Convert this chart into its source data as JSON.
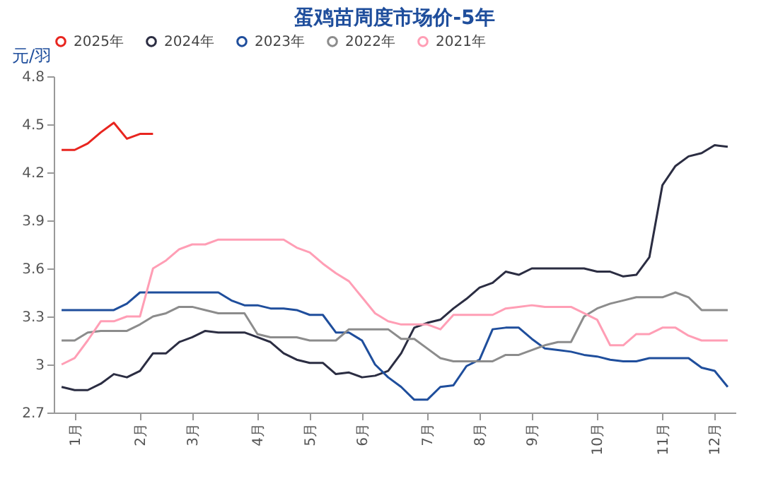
{
  "chart_data": {
    "type": "line",
    "title": "蛋鸡苗周度市场价-5年",
    "ylabel": "元/羽",
    "categories": [
      null,
      "1月",
      null,
      null,
      null,
      null,
      "2月",
      null,
      null,
      null,
      "3月",
      null,
      null,
      null,
      null,
      "4月",
      null,
      null,
      null,
      "5月",
      null,
      null,
      null,
      "6月",
      null,
      null,
      null,
      null,
      "7月",
      null,
      null,
      null,
      "8月",
      null,
      null,
      null,
      "9月",
      null,
      null,
      null,
      null,
      "10月",
      null,
      null,
      null,
      null,
      "11月",
      null,
      null,
      null,
      "12月",
      null
    ],
    "ylim": [
      2.7,
      4.8
    ],
    "yticks": [
      2.7,
      3,
      3.3,
      3.6,
      3.9,
      4.2,
      4.5,
      4.8
    ],
    "legend": "top",
    "series": [
      {
        "name": "2025年",
        "color": "#e8251f",
        "values": [
          4.34,
          4.34,
          4.38,
          4.45,
          4.51,
          4.41,
          4.44,
          4.44,
          null,
          null,
          null,
          null,
          null,
          null,
          null,
          null,
          null,
          null,
          null,
          null,
          null,
          null,
          null,
          null,
          null,
          null,
          null,
          null,
          null,
          null,
          null,
          null,
          null,
          null,
          null,
          null,
          null,
          null,
          null,
          null,
          null,
          null,
          null,
          null,
          null,
          null,
          null,
          null,
          null,
          null,
          null,
          null
        ]
      },
      {
        "name": "2024年",
        "color": "#2b2d42",
        "values": [
          2.86,
          2.84,
          2.84,
          2.88,
          2.94,
          2.92,
          2.96,
          3.07,
          3.07,
          3.14,
          3.17,
          3.21,
          3.2,
          3.2,
          3.2,
          3.17,
          3.14,
          3.07,
          3.03,
          3.01,
          3.01,
          2.94,
          2.95,
          2.92,
          2.93,
          2.96,
          3.07,
          3.23,
          3.26,
          3.28,
          3.35,
          3.41,
          3.48,
          3.51,
          3.58,
          3.56,
          3.6,
          3.6,
          3.6,
          3.6,
          3.6,
          3.58,
          3.58,
          3.55,
          3.56,
          3.67,
          4.12,
          4.24,
          4.3,
          4.32,
          4.37,
          4.36
        ]
      },
      {
        "name": "2023年",
        "color": "#1f4e9c",
        "values": [
          3.34,
          3.34,
          3.34,
          3.34,
          3.34,
          3.38,
          3.45,
          3.45,
          3.45,
          3.45,
          3.45,
          3.45,
          3.45,
          3.4,
          3.37,
          3.37,
          3.35,
          3.35,
          3.34,
          3.31,
          3.31,
          3.2,
          3.2,
          3.15,
          3.0,
          2.92,
          2.86,
          2.78,
          2.78,
          2.86,
          2.87,
          2.99,
          3.03,
          3.22,
          3.23,
          3.23,
          3.16,
          3.1,
          3.09,
          3.08,
          3.06,
          3.05,
          3.03,
          3.02,
          3.02,
          3.04,
          3.04,
          3.04,
          3.04,
          2.98,
          2.96,
          2.86
        ]
      },
      {
        "name": "2022年",
        "color": "#8c8c8c",
        "values": [
          3.15,
          3.15,
          3.2,
          3.21,
          3.21,
          3.21,
          3.25,
          3.3,
          3.32,
          3.36,
          3.36,
          3.34,
          3.32,
          3.32,
          3.32,
          3.19,
          3.17,
          3.17,
          3.17,
          3.15,
          3.15,
          3.15,
          3.22,
          3.22,
          3.22,
          3.22,
          3.16,
          3.16,
          3.1,
          3.04,
          3.02,
          3.02,
          3.02,
          3.02,
          3.06,
          3.06,
          3.09,
          3.12,
          3.14,
          3.14,
          3.3,
          3.35,
          3.38,
          3.4,
          3.42,
          3.42,
          3.42,
          3.45,
          3.42,
          3.34,
          3.34,
          3.34
        ]
      },
      {
        "name": "2021年",
        "color": "#ff9eb5",
        "values": [
          3.0,
          3.04,
          3.15,
          3.27,
          3.27,
          3.3,
          3.3,
          3.6,
          3.65,
          3.72,
          3.75,
          3.75,
          3.78,
          3.78,
          3.78,
          3.78,
          3.78,
          3.78,
          3.73,
          3.7,
          3.63,
          3.57,
          3.52,
          3.42,
          3.32,
          3.27,
          3.25,
          3.25,
          3.25,
          3.22,
          3.31,
          3.31,
          3.31,
          3.31,
          3.35,
          3.36,
          3.37,
          3.36,
          3.36,
          3.36,
          3.32,
          3.28,
          3.12,
          3.12,
          3.19,
          3.19,
          3.23,
          3.23,
          3.18,
          3.15,
          3.15,
          3.15
        ]
      }
    ]
  }
}
